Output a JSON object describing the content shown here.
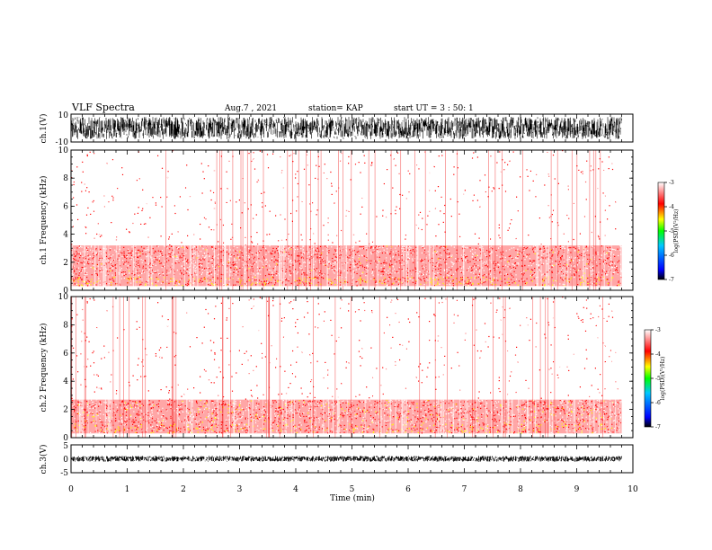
{
  "header": {
    "title": "VLF Spectra",
    "date": "Aug.7 , 2021",
    "station": "station= KAP",
    "start": "start UT = 3 : 50: 1"
  },
  "colorbar_label": "log(PSD)(V²/Hz)",
  "colors": {
    "spectrogram_bg": "#ffffff",
    "scale": [
      "#000000",
      "#0000ff",
      "#00c8ff",
      "#00ff00",
      "#ffff00",
      "#ff0000",
      "#ffffff"
    ]
  },
  "chart_data": [
    {
      "type": "line",
      "panel": "ch1-waveform",
      "ylabel": "ch.1(V)",
      "ylim": [
        -10,
        10
      ],
      "yticks": [
        "10",
        "-10"
      ],
      "xlim": [
        0,
        10
      ],
      "description_of_signal": "dense noisy waveform spanning roughly -8 to 8 V over 0 to 9.8 min"
    },
    {
      "type": "heatmap",
      "panel": "ch1-spectrogram",
      "ylabel": "ch.1 Frequency (kHz)",
      "ylim": [
        0,
        10
      ],
      "yticks": [
        "0",
        "2",
        "4",
        "6",
        "8",
        "10"
      ],
      "xlim": [
        0,
        10
      ],
      "data_extent_min": 9.8,
      "colorbar": {
        "range": [
          -7,
          -3
        ],
        "ticks": [
          "-3",
          "-4",
          "-5",
          "-6",
          "-7"
        ]
      },
      "bands": [
        {
          "from_khz": 0.3,
          "to_khz": 1.0,
          "level": -4.3
        },
        {
          "from_khz": 1.0,
          "to_khz": 3.2,
          "level": -3.9
        },
        {
          "from_khz": 3.2,
          "to_khz": 10.0,
          "level": -3.3
        }
      ]
    },
    {
      "type": "heatmap",
      "panel": "ch2-spectrogram",
      "ylabel": "ch.2 Frequency (kHz)",
      "ylim": [
        0,
        10
      ],
      "yticks": [
        "0",
        "2",
        "4",
        "6",
        "8",
        "10"
      ],
      "xlim": [
        0,
        10
      ],
      "data_extent_min": 9.8,
      "colorbar": {
        "range": [
          -7,
          -3
        ],
        "ticks": [
          "-3",
          "-4",
          "-5",
          "-6",
          "-7"
        ]
      },
      "bands": [
        {
          "from_khz": 0.3,
          "to_khz": 1.0,
          "level": -4.2
        },
        {
          "from_khz": 1.0,
          "to_khz": 2.7,
          "level": -4.0
        },
        {
          "from_khz": 2.7,
          "to_khz": 10.0,
          "level": -3.3
        }
      ]
    },
    {
      "type": "line",
      "panel": "ch3-waveform",
      "ylabel": "ch.3(V)",
      "ylim": [
        -5,
        5
      ],
      "yticks": [
        "5",
        "0",
        "-5"
      ],
      "xlim": [
        0,
        10
      ],
      "xlabel": "Time (min)",
      "xticks": [
        "0",
        "1",
        "2",
        "3",
        "4",
        "5",
        "6",
        "7",
        "8",
        "9",
        "10"
      ],
      "description_of_signal": "narrow band around 0 V spanning roughly -1 to 1 V over 0 to 9.8 min"
    }
  ]
}
